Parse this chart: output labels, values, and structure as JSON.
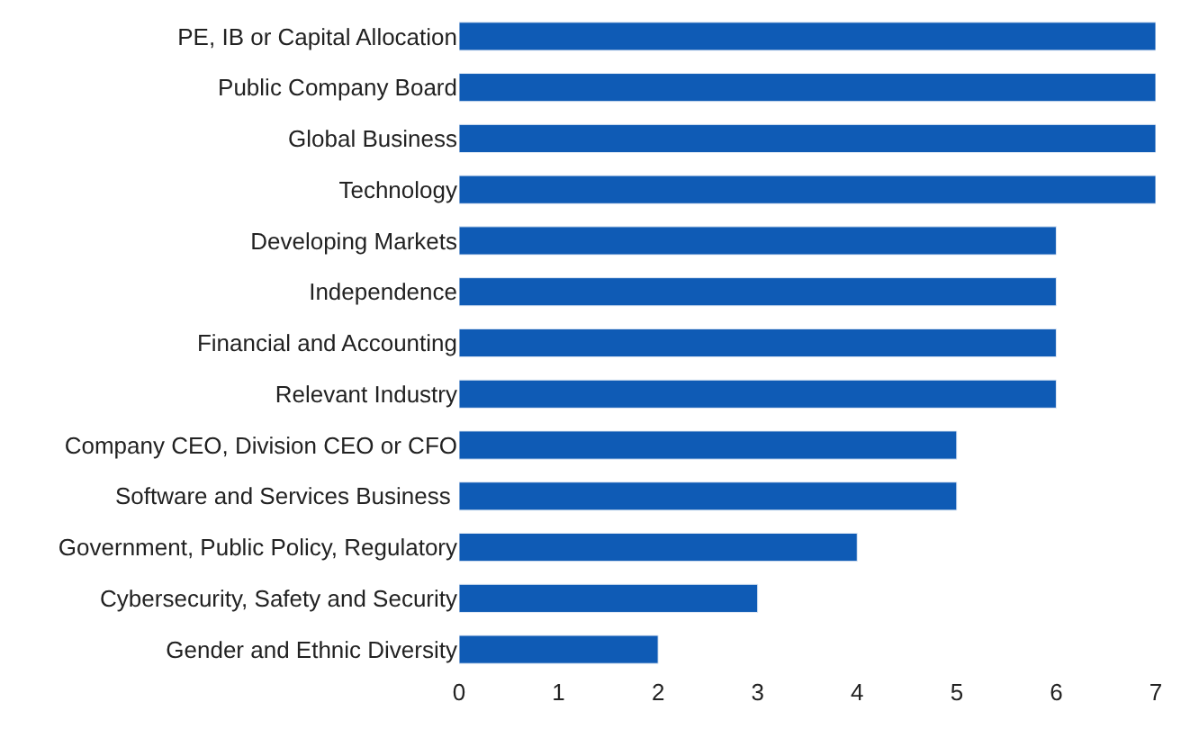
{
  "chart_data": {
    "type": "bar",
    "orientation": "horizontal",
    "categories": [
      "PE, IB or Capital Allocation",
      "Public Company Board",
      "Global Business",
      "Technology",
      "Developing Markets",
      "Independence",
      "Financial and Accounting",
      "Relevant Industry",
      "Company CEO, Division CEO or CFO",
      "Software and Services Business ",
      "Government, Public Policy, Regulatory",
      "Cybersecurity, Safety and Security",
      "Gender and Ethnic Diversity"
    ],
    "values": [
      7,
      7,
      7,
      7,
      6,
      6,
      6,
      6,
      5,
      5,
      4,
      3,
      2
    ],
    "color": "#0f5bb5",
    "xlim": [
      0,
      7
    ],
    "xticks": [
      0,
      1,
      2,
      3,
      4,
      5,
      6,
      7
    ]
  }
}
